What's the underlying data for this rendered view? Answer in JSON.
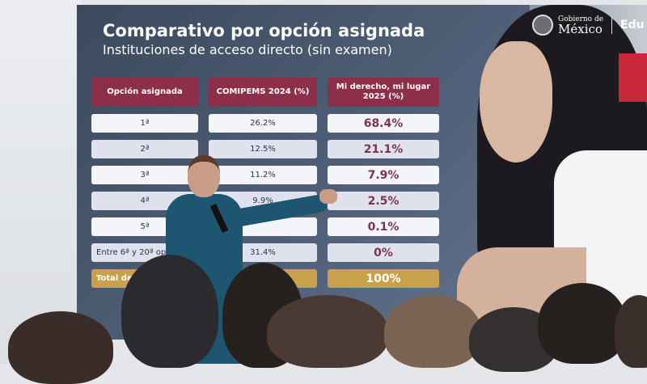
{
  "slide": {
    "title": "Comparativo por opción asignada",
    "subtitle": "Instituciones de acceso directo (sin examen)",
    "logo": {
      "line1": "Gobierno de",
      "line2": "México",
      "partner": "Edu"
    },
    "table": {
      "headers": [
        "Opción asignada",
        "COMIPEMS 2024 (%)",
        "Mi derecho, mi lugar 2025 (%)"
      ],
      "rows": [
        {
          "option": "1ª",
          "comipems_2024": "26.2%",
          "mi_derecho_2025": "68.4%"
        },
        {
          "option": "2ª",
          "comipems_2024": "12.5%",
          "mi_derecho_2025": "21.1%"
        },
        {
          "option": "3ª",
          "comipems_2024": "11.2%",
          "mi_derecho_2025": "7.9%"
        },
        {
          "option": "4ª",
          "comipems_2024": "9.9%",
          "mi_derecho_2025": "2.5%"
        },
        {
          "option": "5ª",
          "comipems_2024": "",
          "mi_derecho_2025": "0.1%"
        },
        {
          "option": "Entre 6ª y 20ª op",
          "comipems_2024": "31.4%",
          "mi_derecho_2025": "0%"
        }
      ],
      "total": {
        "option": "Total de as",
        "mi_derecho_2025": "100%"
      }
    },
    "colors": {
      "header": "#8d2f4b",
      "total": "#c9a14a",
      "value_accent": "#7a3452"
    }
  }
}
